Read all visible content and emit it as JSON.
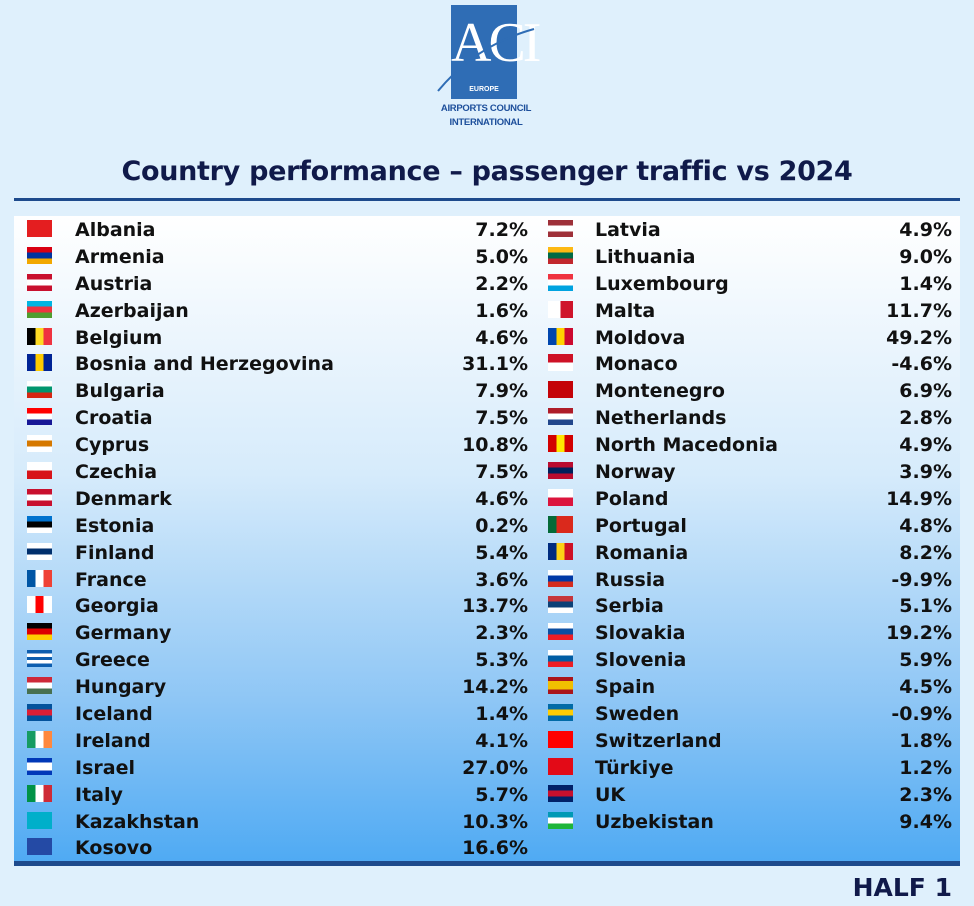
{
  "logo": {
    "mark": "ACI",
    "sub": "EUROPE",
    "line1": "AIRPORTS COUNCIL",
    "line2": "INTERNATIONAL"
  },
  "title": "Country performance – passenger traffic vs 2024",
  "period": "HALF 1",
  "left": [
    {
      "country": "Albania",
      "value": "7.2%",
      "flag": [
        "#e41e20"
      ],
      "dir": "to bottom"
    },
    {
      "country": "Armenia",
      "value": "5.0%",
      "flag": [
        "#d90012",
        "#0033a0",
        "#f2a800"
      ],
      "dir": "to bottom"
    },
    {
      "country": "Austria",
      "value": "2.2%",
      "flag": [
        "#c8102e",
        "#ffffff",
        "#c8102e"
      ],
      "dir": "to bottom"
    },
    {
      "country": "Azerbaijan",
      "value": "1.6%",
      "flag": [
        "#00b5e2",
        "#ef3340",
        "#509e2f"
      ],
      "dir": "to bottom"
    },
    {
      "country": "Belgium",
      "value": "4.6%",
      "flag": [
        "#000000",
        "#fdda24",
        "#ef3340"
      ],
      "dir": "to right"
    },
    {
      "country": "Bosnia and Herzegovina",
      "value": "31.1%",
      "flag": [
        "#002395",
        "#fecb00",
        "#002395"
      ],
      "dir": "to right"
    },
    {
      "country": "Bulgaria",
      "value": "7.9%",
      "flag": [
        "#ffffff",
        "#00966e",
        "#d62612"
      ],
      "dir": "to bottom"
    },
    {
      "country": "Croatia",
      "value": "7.5%",
      "flag": [
        "#ff0000",
        "#ffffff",
        "#171796"
      ],
      "dir": "to bottom"
    },
    {
      "country": "Cyprus",
      "value": "10.8%",
      "flag": [
        "#ffffff",
        "#d57800",
        "#ffffff"
      ],
      "dir": "to bottom"
    },
    {
      "country": "Czechia",
      "value": "7.5%",
      "flag": [
        "#ffffff",
        "#d7141a"
      ],
      "dir": "to bottom"
    },
    {
      "country": "Denmark",
      "value": "4.6%",
      "flag": [
        "#c8102e",
        "#ffffff",
        "#c8102e"
      ],
      "dir": "to bottom"
    },
    {
      "country": "Estonia",
      "value": "0.2%",
      "flag": [
        "#0072ce",
        "#000000",
        "#ffffff"
      ],
      "dir": "to bottom"
    },
    {
      "country": "Finland",
      "value": "5.4%",
      "flag": [
        "#ffffff",
        "#002f6c",
        "#ffffff"
      ],
      "dir": "to bottom"
    },
    {
      "country": "France",
      "value": "3.6%",
      "flag": [
        "#0055a4",
        "#ffffff",
        "#ef4135"
      ],
      "dir": "to right"
    },
    {
      "country": "Georgia",
      "value": "13.7%",
      "flag": [
        "#ffffff",
        "#ff0000",
        "#ffffff"
      ],
      "dir": "to right"
    },
    {
      "country": "Germany",
      "value": "2.3%",
      "flag": [
        "#000000",
        "#dd0000",
        "#ffce00"
      ],
      "dir": "to bottom"
    },
    {
      "country": "Greece",
      "value": "5.3%",
      "flag": [
        "#0d5eaf",
        "#ffffff",
        "#0d5eaf",
        "#ffffff",
        "#0d5eaf"
      ],
      "dir": "to bottom"
    },
    {
      "country": "Hungary",
      "value": "14.2%",
      "flag": [
        "#ce2939",
        "#ffffff",
        "#477050"
      ],
      "dir": "to bottom"
    },
    {
      "country": "Iceland",
      "value": "1.4%",
      "flag": [
        "#02529c",
        "#dc1e35",
        "#02529c"
      ],
      "dir": "to bottom"
    },
    {
      "country": "Ireland",
      "value": "4.1%",
      "flag": [
        "#169b62",
        "#ffffff",
        "#ff883e"
      ],
      "dir": "to right"
    },
    {
      "country": "Israel",
      "value": "27.0%",
      "flag": [
        "#0038b8",
        "#ffffff",
        "#ffffff",
        "#0038b8"
      ],
      "dir": "to bottom"
    },
    {
      "country": "Italy",
      "value": "5.7%",
      "flag": [
        "#009246",
        "#ffffff",
        "#ce2b37"
      ],
      "dir": "to right"
    },
    {
      "country": "Kazakhstan",
      "value": "10.3%",
      "flag": [
        "#00afca"
      ],
      "dir": "to bottom"
    },
    {
      "country": "Kosovo",
      "value": "16.6%",
      "flag": [
        "#244aa5"
      ],
      "dir": "to bottom"
    }
  ],
  "right": [
    {
      "country": "Latvia",
      "value": "4.9%",
      "flag": [
        "#9e3039",
        "#ffffff",
        "#9e3039"
      ],
      "dir": "to bottom"
    },
    {
      "country": "Lithuania",
      "value": "9.0%",
      "flag": [
        "#fdb913",
        "#006a44",
        "#c1272d"
      ],
      "dir": "to bottom"
    },
    {
      "country": "Luxembourg",
      "value": "1.4%",
      "flag": [
        "#ef3340",
        "#ffffff",
        "#00a3e0"
      ],
      "dir": "to bottom"
    },
    {
      "country": "Malta",
      "value": "11.7%",
      "flag": [
        "#ffffff",
        "#cf142b"
      ],
      "dir": "to right"
    },
    {
      "country": "Moldova",
      "value": "49.2%",
      "flag": [
        "#0046ae",
        "#ffd200",
        "#cc092f"
      ],
      "dir": "to right"
    },
    {
      "country": "Monaco",
      "value": "-4.6%",
      "flag": [
        "#ce1126",
        "#ffffff"
      ],
      "dir": "to bottom"
    },
    {
      "country": "Montenegro",
      "value": "6.9%",
      "flag": [
        "#c40308"
      ],
      "dir": "to bottom"
    },
    {
      "country": "Netherlands",
      "value": "2.8%",
      "flag": [
        "#ae1c28",
        "#ffffff",
        "#21468b"
      ],
      "dir": "to bottom"
    },
    {
      "country": "North Macedonia",
      "value": "4.9%",
      "flag": [
        "#d20000",
        "#ffe600",
        "#d20000"
      ],
      "dir": "to right"
    },
    {
      "country": "Norway",
      "value": "3.9%",
      "flag": [
        "#ba0c2f",
        "#00205b",
        "#ba0c2f"
      ],
      "dir": "to bottom"
    },
    {
      "country": "Poland",
      "value": "14.9%",
      "flag": [
        "#ffffff",
        "#dc143c"
      ],
      "dir": "to bottom"
    },
    {
      "country": "Portugal",
      "value": "4.8%",
      "flag": [
        "#046a38",
        "#da291c",
        "#da291c"
      ],
      "dir": "to right"
    },
    {
      "country": "Romania",
      "value": "8.2%",
      "flag": [
        "#002b7f",
        "#fcd116",
        "#ce1126"
      ],
      "dir": "to right"
    },
    {
      "country": "Russia",
      "value": "-9.9%",
      "flag": [
        "#ffffff",
        "#0039a6",
        "#d52b1e"
      ],
      "dir": "to bottom"
    },
    {
      "country": "Serbia",
      "value": "5.1%",
      "flag": [
        "#c6363c",
        "#0c4076",
        "#ffffff"
      ],
      "dir": "to bottom"
    },
    {
      "country": "Slovakia",
      "value": "19.2%",
      "flag": [
        "#ffffff",
        "#0b4ea2",
        "#ee1c25"
      ],
      "dir": "to bottom"
    },
    {
      "country": "Slovenia",
      "value": "5.9%",
      "flag": [
        "#ffffff",
        "#005da4",
        "#ed1c24"
      ],
      "dir": "to bottom"
    },
    {
      "country": "Spain",
      "value": "4.5%",
      "flag": [
        "#aa151b",
        "#f1bf00",
        "#f1bf00",
        "#aa151b"
      ],
      "dir": "to bottom"
    },
    {
      "country": "Sweden",
      "value": "-0.9%",
      "flag": [
        "#006aa7",
        "#fecc02",
        "#006aa7"
      ],
      "dir": "to bottom"
    },
    {
      "country": "Switzerland",
      "value": "1.8%",
      "flag": [
        "#ff0000"
      ],
      "dir": "to bottom"
    },
    {
      "country": "Türkiye",
      "value": "1.2%",
      "flag": [
        "#e30a17"
      ],
      "dir": "to bottom"
    },
    {
      "country": "UK",
      "value": "2.3%",
      "flag": [
        "#012169",
        "#c8102e",
        "#012169"
      ],
      "dir": "to bottom"
    },
    {
      "country": "Uzbekistan",
      "value": "9.4%",
      "flag": [
        "#0099b5",
        "#ffffff",
        "#1eb53a"
      ],
      "dir": "to bottom"
    }
  ]
}
